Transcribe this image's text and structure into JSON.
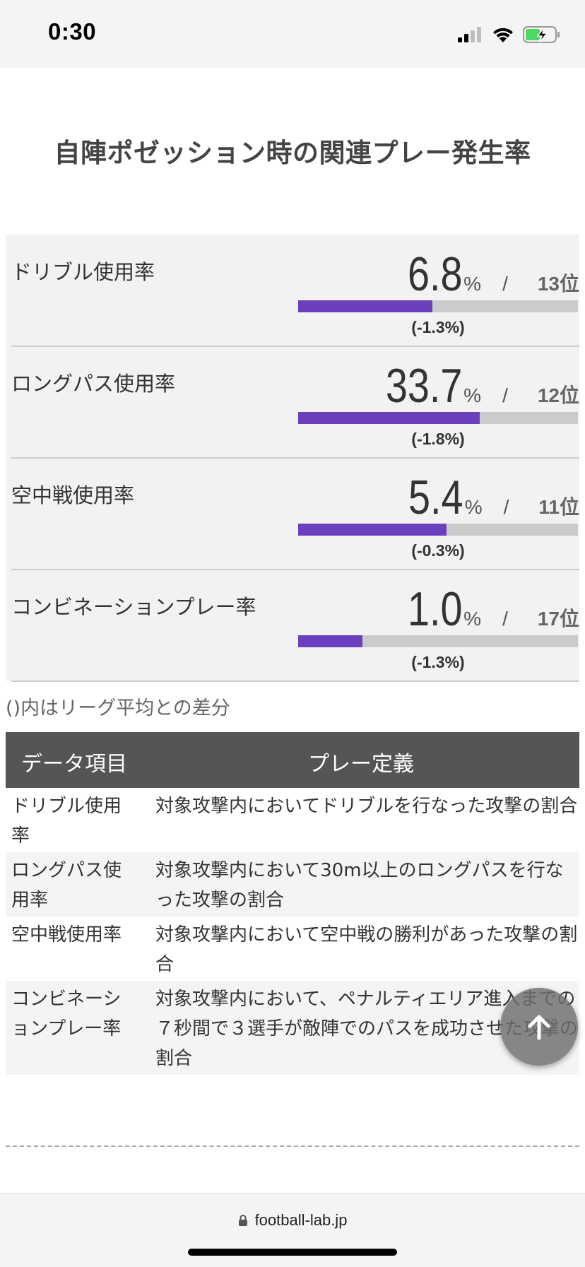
{
  "status_bar": {
    "time": "0:30"
  },
  "page_title": "自陣ポゼッション時の関連プレー発生率",
  "stats": [
    {
      "label": "ドリブル使用率",
      "value": "6.8",
      "unit": "%",
      "separator": "/",
      "rank": "13位",
      "diff": "(-1.3%)",
      "bar_fill_percent": 48
    },
    {
      "label": "ロングパス使用率",
      "value": "33.7",
      "unit": "%",
      "separator": "/",
      "rank": "12位",
      "diff": "(-1.8%)",
      "bar_fill_percent": 65
    },
    {
      "label": "空中戦使用率",
      "value": "5.4",
      "unit": "%",
      "separator": "/",
      "rank": "11位",
      "diff": "(-0.3%)",
      "bar_fill_percent": 53
    },
    {
      "label": "コンビネーションプレー率",
      "value": "1.0",
      "unit": "%",
      "separator": "/",
      "rank": "17位",
      "diff": "(-1.3%)",
      "bar_fill_percent": 23
    }
  ],
  "note": "()内はリーグ平均との差分",
  "definitions": {
    "headers": [
      "データ項目",
      "プレー定義"
    ],
    "rows": [
      {
        "term": "ドリブル使用率",
        "definition": "対象攻撃内においてドリブルを行なった攻撃の割合"
      },
      {
        "term": "ロングパス使用率",
        "definition": "対象攻撃内において30m以上のロングパスを行なった攻撃の割合"
      },
      {
        "term": "空中戦使用率",
        "definition": "対象攻撃内において空中戦の勝利があった攻撃の割合"
      },
      {
        "term": "コンビネーションプレー率",
        "definition": "対象攻撃内において、ペナルティエリア進入までの７秒間で３選手が敵陣でのパスを成功させた攻撃の割合"
      }
    ]
  },
  "browser": {
    "url": "football-lab.jp"
  },
  "colors": {
    "bar_fill": "#6c3fbf",
    "bar_track": "#cbcbcb",
    "table_header": "#555555",
    "panel_bg": "#f2f2f2"
  }
}
